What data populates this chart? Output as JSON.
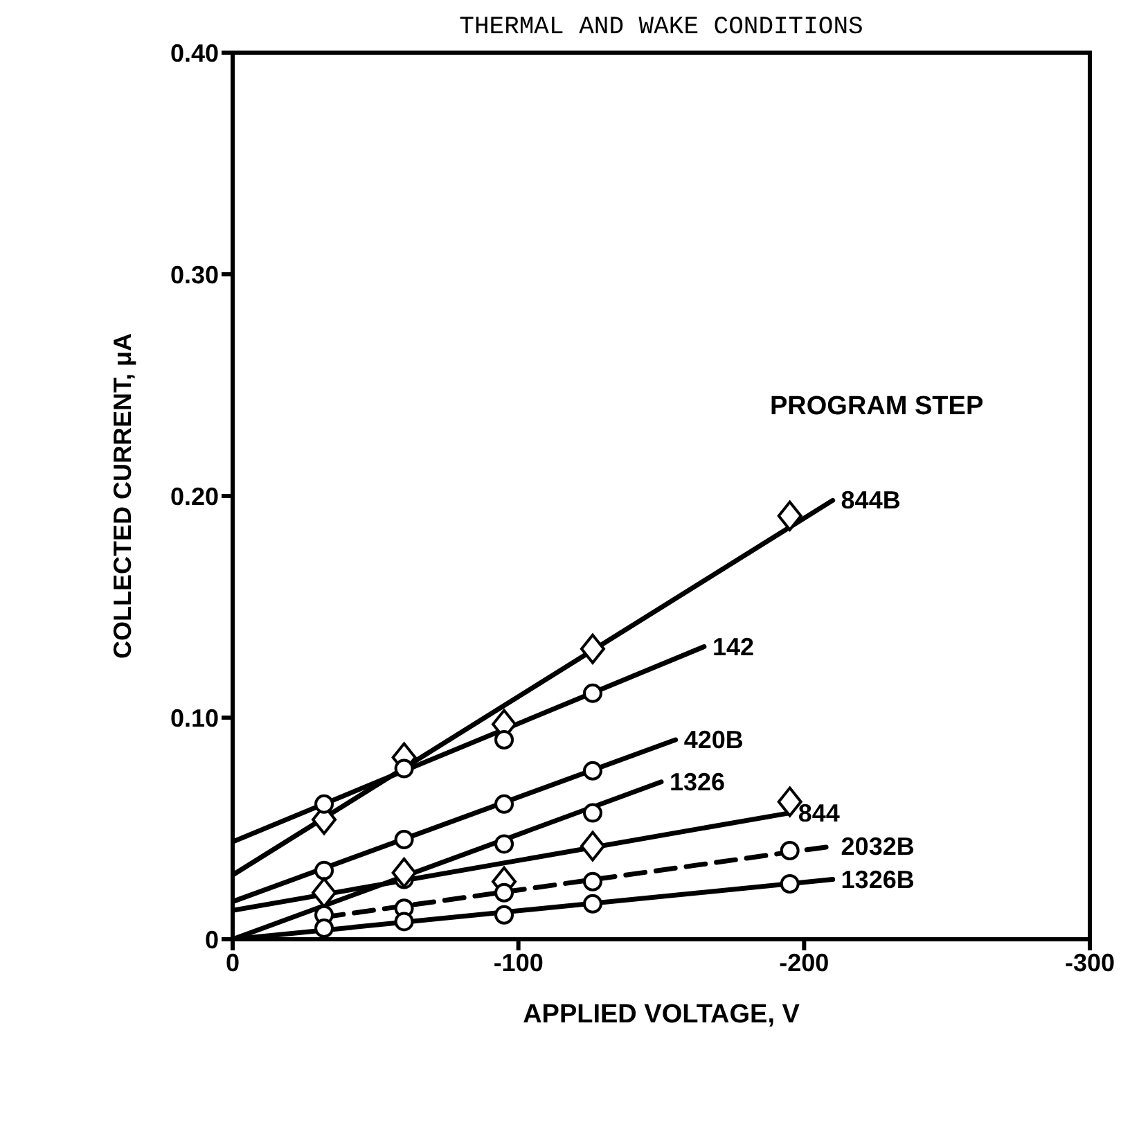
{
  "chart_data": {
    "type": "line",
    "title": "THERMAL AND WAKE CONDITIONS",
    "xlabel": "APPLIED VOLTAGE, V",
    "ylabel": "COLLECTED CURRENT, μA",
    "annotations": [
      "PROGRAM STEP"
    ],
    "xlim": [
      0,
      -300
    ],
    "xticks": [
      0,
      -100,
      -200,
      -300
    ],
    "ylim": [
      0,
      0.4
    ],
    "yticks": [
      0,
      {
        "value": 0.1,
        "label": "0.10"
      },
      {
        "value": 0.2,
        "label": "0.20"
      },
      {
        "value": 0.3,
        "label": "0.30"
      },
      {
        "value": 0.4,
        "label": "0.40"
      }
    ],
    "grid": false,
    "legend": false,
    "series": [
      {
        "name": "844B",
        "color": "#000000",
        "line_style": "solid",
        "marker": "none",
        "x": [
          0,
          -210
        ],
        "values": [
          0.029,
          0.198
        ]
      },
      {
        "type": "scatter",
        "color": "#000000",
        "marker": "diamond",
        "x": [
          -32,
          -60,
          -95,
          -126,
          -195
        ],
        "values": [
          0.054,
          0.082,
          0.097,
          0.131,
          0.191
        ]
      },
      {
        "name": "142",
        "color": "#000000",
        "line_style": "solid",
        "marker": "none",
        "x": [
          0,
          -165
        ],
        "values": [
          0.044,
          0.132
        ]
      },
      {
        "type": "scatter",
        "color": "#000000",
        "marker": "circle",
        "x": [
          -32,
          -60,
          -95,
          -126
        ],
        "values": [
          0.061,
          0.077,
          0.09,
          0.111
        ]
      },
      {
        "name": "420B",
        "color": "#000000",
        "line_style": "solid",
        "marker": "none",
        "x": [
          0,
          -155
        ],
        "values": [
          0.017,
          0.09
        ]
      },
      {
        "type": "scatter",
        "color": "#000000",
        "marker": "circle",
        "x": [
          -32,
          -60,
          -95,
          -126
        ],
        "values": [
          0.031,
          0.045,
          0.061,
          0.076
        ]
      },
      {
        "name": "1326",
        "color": "#000000",
        "line_style": "solid",
        "marker": "none",
        "x": [
          0,
          -150
        ],
        "values": [
          0,
          0.071
        ]
      },
      {
        "type": "scatter",
        "color": "#000000",
        "marker": "circle",
        "x": [
          -60,
          -95,
          -126
        ],
        "values": [
          0.027,
          0.043,
          0.057
        ]
      },
      {
        "name": "844",
        "color": "#000000",
        "line_style": "solid",
        "marker": "none",
        "x": [
          0,
          -195
        ],
        "values": [
          0.013,
          0.057
        ]
      },
      {
        "type": "scatter",
        "color": "#000000",
        "marker": "diamond",
        "x": [
          -32,
          -60,
          -95,
          -126,
          -195
        ],
        "values": [
          0.021,
          0.03,
          0.026,
          0.042,
          0.062
        ]
      },
      {
        "name": "2032B",
        "color": "#000000",
        "line_style": "dashed",
        "marker": "none",
        "x": [
          -32,
          -210
        ],
        "values": [
          0.01,
          0.042
        ]
      },
      {
        "type": "scatter",
        "color": "#000000",
        "marker": "circle",
        "x": [
          -32,
          -60,
          -95,
          -126,
          -195
        ],
        "values": [
          0.011,
          0.014,
          0.021,
          0.026,
          0.04
        ]
      },
      {
        "name": "1326B",
        "color": "#000000",
        "line_style": "solid",
        "marker": "none",
        "x": [
          0,
          -210
        ],
        "values": [
          0,
          0.027
        ]
      },
      {
        "type": "scatter",
        "color": "#000000",
        "marker": "circle",
        "x": [
          -32,
          -60,
          -95,
          -126,
          -195
        ],
        "values": [
          0.005,
          0.008,
          0.011,
          0.016,
          0.025
        ]
      }
    ]
  }
}
